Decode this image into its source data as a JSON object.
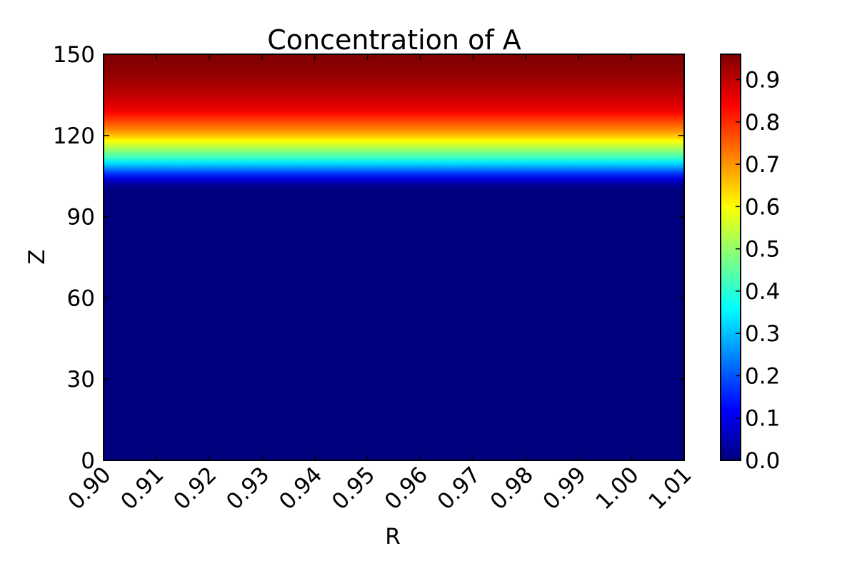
{
  "chart_data": {
    "type": "heatmap",
    "title": "Concentration of A",
    "xlabel": "R",
    "ylabel": "Z",
    "x_range": [
      0.9,
      1.01
    ],
    "y_range": [
      0,
      150
    ],
    "x_ticks": [
      "0.90",
      "0.91",
      "0.92",
      "0.93",
      "0.94",
      "0.95",
      "0.96",
      "0.97",
      "0.98",
      "0.99",
      "1.00",
      "1.01"
    ],
    "y_ticks": [
      "0",
      "30",
      "60",
      "90",
      "120",
      "150"
    ],
    "colormap": "jet",
    "colorbar": {
      "range": [
        0.0,
        0.96
      ],
      "ticks": [
        "0.0",
        "0.1",
        "0.2",
        "0.3",
        "0.4",
        "0.5",
        "0.6",
        "0.7",
        "0.8",
        "0.9"
      ]
    },
    "profile_along_z": {
      "z": [
        0,
        100,
        102,
        104,
        106,
        108,
        110,
        112,
        114,
        116,
        118,
        120,
        122,
        124,
        126,
        128,
        130,
        135,
        140,
        145,
        150
      ],
      "value": [
        0.0,
        0.0,
        0.03,
        0.09,
        0.17,
        0.26,
        0.34,
        0.42,
        0.48,
        0.54,
        0.6,
        0.66,
        0.71,
        0.75,
        0.79,
        0.83,
        0.86,
        0.9,
        0.93,
        0.95,
        0.96
      ]
    },
    "grid": false,
    "colors": {
      "jet_stops": [
        "#00007f",
        "#0000ff",
        "#007fff",
        "#00ffff",
        "#7fff7f",
        "#ffff00",
        "#ff7f00",
        "#ff0000",
        "#7f0000"
      ]
    }
  }
}
